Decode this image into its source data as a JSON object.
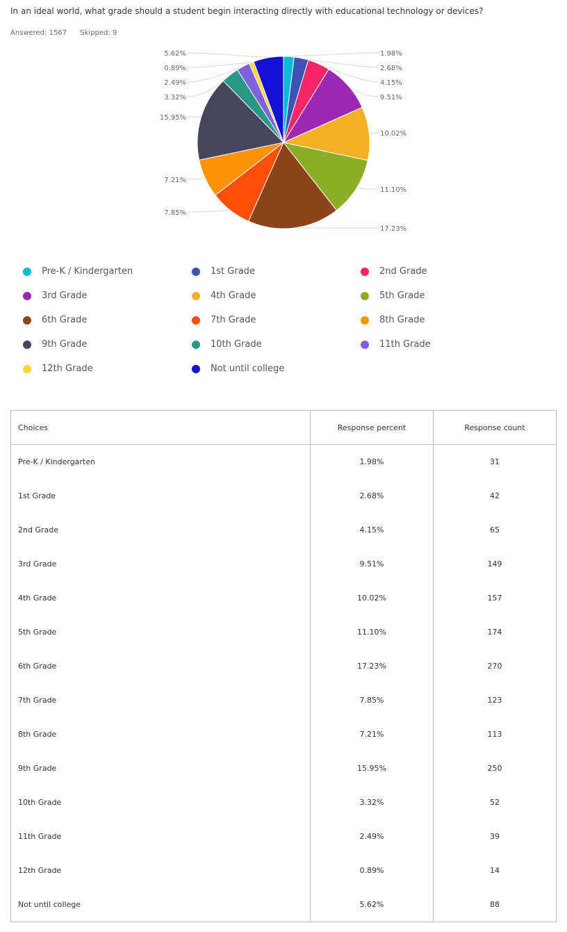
{
  "question": "In an ideal world, what grade should a student begin interacting directly with educational technology or devices?",
  "meta": {
    "answered": "Answered: 1567",
    "skipped": "Skipped: 9"
  },
  "chart_data": {
    "type": "pie",
    "slices": [
      {
        "name": "Pre-K / Kindergarten",
        "percent": 1.98,
        "label": "1.98%",
        "color": "#00BCD4"
      },
      {
        "name": "1st Grade",
        "percent": 2.68,
        "label": "2.68%",
        "color": "#3F51B5"
      },
      {
        "name": "2nd Grade",
        "percent": 4.15,
        "label": "4.15%",
        "color": "#F42668"
      },
      {
        "name": "3rd Grade",
        "percent": 9.51,
        "label": "9.51%",
        "color": "#9C27B0"
      },
      {
        "name": "4th Grade",
        "percent": 10.02,
        "label": "10.02%",
        "color": "#F3B024"
      },
      {
        "name": "5th Grade",
        "percent": 11.1,
        "label": "11.10%",
        "color": "#8BAE27"
      },
      {
        "name": "6th Grade",
        "percent": 17.23,
        "label": "17.23%",
        "color": "#8E441A"
      },
      {
        "name": "7th Grade",
        "percent": 7.85,
        "label": "7.85%",
        "color": "#FF4E08"
      },
      {
        "name": "8th Grade",
        "percent": 7.21,
        "label": "7.21%",
        "color": "#FF9306"
      },
      {
        "name": "9th Grade",
        "percent": 15.95,
        "label": "15.95%",
        "color": "#47445E"
      },
      {
        "name": "10th Grade",
        "percent": 3.32,
        "label": "3.32%",
        "color": "#2A9887"
      },
      {
        "name": "11th Grade",
        "percent": 2.49,
        "label": "2.49%",
        "color": "#7F61DE"
      },
      {
        "name": "12th Grade",
        "percent": 0.89,
        "label": "0.89%",
        "color": "#FDD835"
      },
      {
        "name": "Not until college",
        "percent": 5.62,
        "label": "5.62%",
        "color": "#1410D6"
      }
    ]
  },
  "table": {
    "headers": [
      "Choices",
      "Response percent",
      "Response count"
    ],
    "rows": [
      [
        "Pre-K / Kindergarten",
        "1.98%",
        "31"
      ],
      [
        "1st Grade",
        "2.68%",
        "42"
      ],
      [
        "2nd Grade",
        "4.15%",
        "65"
      ],
      [
        "3rd Grade",
        "9.51%",
        "149"
      ],
      [
        "4th Grade",
        "10.02%",
        "157"
      ],
      [
        "5th Grade",
        "11.10%",
        "174"
      ],
      [
        "6th Grade",
        "17.23%",
        "270"
      ],
      [
        "7th Grade",
        "7.85%",
        "123"
      ],
      [
        "8th Grade",
        "7.21%",
        "113"
      ],
      [
        "9th Grade",
        "15.95%",
        "250"
      ],
      [
        "10th Grade",
        "3.32%",
        "52"
      ],
      [
        "11th Grade",
        "2.49%",
        "39"
      ],
      [
        "12th Grade",
        "0.89%",
        "14"
      ],
      [
        "Not until college",
        "5.62%",
        "88"
      ]
    ]
  }
}
